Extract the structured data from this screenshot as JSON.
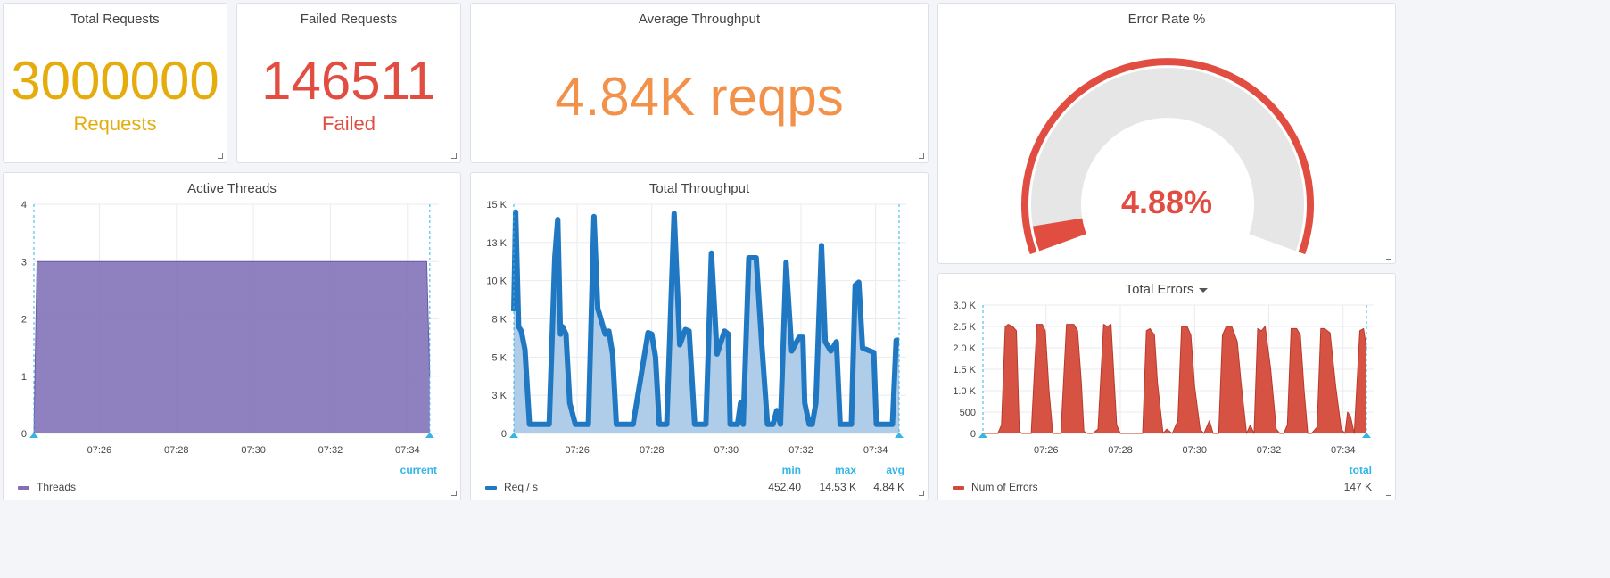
{
  "colors": {
    "yellow": "#e5ac0e",
    "red": "#e24d42",
    "orange": "#f2914a",
    "purple": "#806eb7",
    "blue": "#1f78c1",
    "blue_fill": "#a6c8e6",
    "err_red": "#d44a3a",
    "cyan": "#33b5e5"
  },
  "total_requests": {
    "title": "Total Requests",
    "value": "3000000",
    "unit": "Requests"
  },
  "failed_requests": {
    "title": "Failed Requests",
    "value": "146511",
    "unit": "Failed"
  },
  "avg_throughput": {
    "title": "Average Throughput",
    "value": "4.84K reqps"
  },
  "error_rate": {
    "title": "Error Rate %",
    "value": "4.88%",
    "fraction": 0.0488,
    "gauge": "arc"
  },
  "active_threads": {
    "title": "Active Threads",
    "legend": {
      "name": "Threads",
      "header": "current"
    }
  },
  "total_throughput": {
    "title": "Total Throughput",
    "legend": {
      "name": "Req / s",
      "headers": [
        "min",
        "max",
        "avg"
      ],
      "values": [
        "452.40",
        "14.53 K",
        "4.84 K"
      ]
    }
  },
  "total_errors": {
    "title": "Total Errors",
    "menu_icon": "caret-down-icon",
    "legend": {
      "name": "Num of Errors",
      "header": "total",
      "value": "147 K"
    }
  },
  "chart_data": [
    {
      "type": "area",
      "name": "active_threads",
      "x_ticks": [
        "07:26",
        "07:28",
        "07:30",
        "07:32",
        "07:34"
      ],
      "y_ticks": [
        "0",
        "1",
        "2",
        "3",
        "4"
      ],
      "ylim": [
        0,
        4
      ],
      "xlim": [
        0,
        10.33
      ],
      "series": [
        {
          "name": "Threads",
          "x": [
            0,
            0.08,
            10.2,
            10.28
          ],
          "values": [
            0,
            3,
            3,
            1
          ]
        }
      ]
    },
    {
      "type": "area",
      "name": "total_throughput",
      "x_ticks": [
        "07:26",
        "07:28",
        "07:30",
        "07:32",
        "07:34"
      ],
      "y_ticks": [
        "0",
        "3 K",
        "5 K",
        "8 K",
        "10 K",
        "13 K",
        "15 K"
      ],
      "ylim": [
        0,
        15000
      ],
      "xlim": [
        0,
        10.33
      ],
      "series": [
        {
          "name": "Req / s",
          "x": [
            0,
            0.05,
            0.13,
            0.2,
            0.3,
            0.42,
            0.55,
            0.65,
            0.95,
            1.1,
            1.18,
            1.25,
            1.3,
            1.4,
            1.5,
            1.65,
            1.75,
            1.85,
            1.95,
            2.0,
            2.15,
            2.25,
            2.45,
            2.55,
            2.65,
            2.75,
            2.85,
            3.0,
            3.2,
            3.4,
            3.6,
            3.7,
            3.8,
            3.9,
            4.0,
            4.1,
            4.3,
            4.45,
            4.6,
            4.7,
            4.78,
            4.85,
            4.95,
            5.05,
            5.15,
            5.3,
            5.45,
            5.65,
            5.75,
            5.8,
            5.9,
            6.0,
            6.08,
            6.15,
            6.3,
            6.5,
            6.65,
            6.8,
            6.88,
            6.95,
            7.05,
            7.15,
            7.3,
            7.45,
            7.65,
            7.75,
            7.8,
            7.92,
            8.0,
            8.1,
            8.25,
            8.35,
            8.5,
            8.65,
            8.75,
            8.85,
            8.95,
            9.05,
            9.15,
            9.25,
            9.35,
            9.45,
            9.55,
            9.65,
            9.72,
            9.82,
            9.95,
            10.05,
            10.15,
            10.25,
            10.33
          ],
          "values": [
            8000,
            14500,
            7000,
            6700,
            5500,
            600,
            600,
            600,
            600,
            11500,
            14000,
            6500,
            7000,
            6500,
            2000,
            600,
            600,
            600,
            600,
            600,
            14200,
            8200,
            6500,
            6700,
            5200,
            600,
            600,
            600,
            600,
            3600,
            6600,
            6500,
            5000,
            600,
            600,
            600,
            14400,
            5800,
            6800,
            6700,
            3500,
            600,
            600,
            600,
            600,
            11800,
            5200,
            6700,
            6500,
            600,
            600,
            600,
            2000,
            600,
            11500,
            11500,
            5800,
            600,
            600,
            600,
            1500,
            600,
            11200,
            5400,
            6300,
            6300,
            2000,
            600,
            600,
            2000,
            12300,
            6000,
            5400,
            6000,
            600,
            600,
            600,
            600,
            9700,
            9900,
            5600,
            5500,
            5400,
            5300,
            600,
            600,
            600,
            600,
            600,
            6100,
            6100
          ]
        }
      ]
    },
    {
      "type": "area",
      "name": "total_errors",
      "x_ticks": [
        "07:26",
        "07:28",
        "07:30",
        "07:32",
        "07:34"
      ],
      "y_ticks": [
        "0",
        "500",
        "1.0 K",
        "1.5 K",
        "2.0 K",
        "2.5 K",
        "3.0 K"
      ],
      "ylim": [
        0,
        3000
      ],
      "xlim": [
        0,
        10.33
      ],
      "series": [
        {
          "name": "Num of Errors",
          "x": [
            0,
            0.4,
            0.5,
            0.6,
            0.68,
            0.8,
            0.9,
            0.98,
            1.05,
            1.3,
            1.45,
            1.6,
            1.68,
            1.78,
            1.88,
            1.96,
            2.1,
            2.25,
            2.45,
            2.55,
            2.65,
            2.72,
            2.82,
            2.95,
            3.1,
            3.25,
            3.35,
            3.45,
            3.6,
            3.7,
            3.85,
            4.0,
            4.3,
            4.4,
            4.5,
            4.62,
            4.7,
            4.85,
            4.95,
            5.1,
            5.25,
            5.35,
            5.5,
            5.6,
            5.7,
            5.85,
            5.95,
            6.1,
            6.2,
            6.35,
            6.45,
            6.55,
            6.7,
            6.85,
            6.95,
            7.1,
            7.2,
            7.3,
            7.4,
            7.5,
            7.6,
            7.75,
            7.9,
            8.0,
            8.1,
            8.2,
            8.3,
            8.45,
            8.55,
            8.65,
            8.75,
            8.85,
            9.0,
            9.1,
            9.2,
            9.35,
            9.5,
            9.65,
            9.75,
            9.82,
            9.9,
            10.0,
            10.15,
            10.25,
            10.33
          ],
          "values": [
            0,
            0,
            200,
            2500,
            2550,
            2500,
            2400,
            50,
            0,
            0,
            2550,
            2550,
            2400,
            1000,
            0,
            0,
            0,
            2550,
            2550,
            2400,
            1200,
            50,
            0,
            0,
            100,
            2550,
            2500,
            2550,
            200,
            0,
            0,
            0,
            0,
            2400,
            2450,
            2300,
            1200,
            0,
            100,
            0,
            300,
            2500,
            2500,
            2300,
            1100,
            100,
            0,
            300,
            0,
            0,
            2300,
            2500,
            2500,
            2150,
            1200,
            0,
            200,
            0,
            2450,
            2400,
            2500,
            1500,
            100,
            0,
            0,
            200,
            2450,
            2450,
            2300,
            1000,
            0,
            0,
            150,
            2450,
            2450,
            2350,
            1100,
            100,
            0,
            500,
            400,
            0,
            2400,
            2450,
            2000
          ]
        }
      ]
    }
  ]
}
